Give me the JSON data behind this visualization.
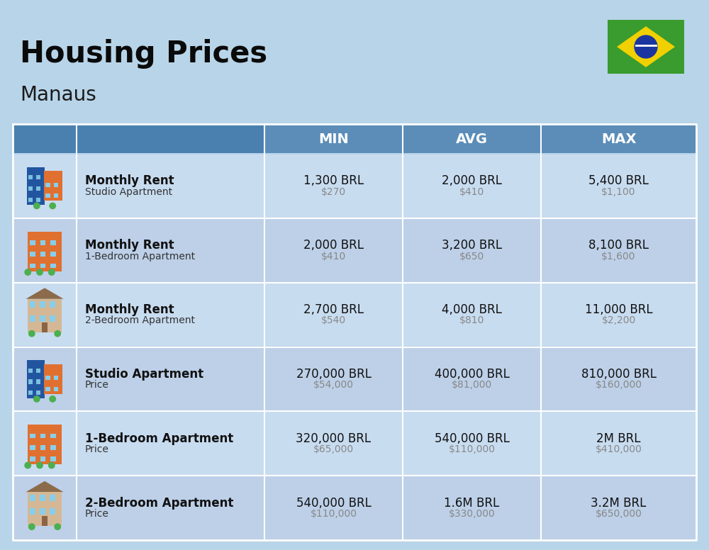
{
  "title": "Housing Prices",
  "subtitle": "Manaus",
  "bg_color": "#B8D4E8",
  "header_color": "#5B8DB8",
  "row_bg_even": "#C8DCF0",
  "row_bg_odd": "#BDD0E8",
  "col_headers": [
    "MIN",
    "AVG",
    "MAX"
  ],
  "rows": [
    {
      "label_bold": "Monthly Rent",
      "label_sub": "Studio Apartment",
      "icon_type": "blue_orange",
      "min_brl": "1,300 BRL",
      "min_usd": "$270",
      "avg_brl": "2,000 BRL",
      "avg_usd": "$410",
      "max_brl": "5,400 BRL",
      "max_usd": "$1,100"
    },
    {
      "label_bold": "Monthly Rent",
      "label_sub": "1-Bedroom Apartment",
      "icon_type": "orange",
      "min_brl": "2,000 BRL",
      "min_usd": "$410",
      "avg_brl": "3,200 BRL",
      "avg_usd": "$650",
      "max_brl": "8,100 BRL",
      "max_usd": "$1,600"
    },
    {
      "label_bold": "Monthly Rent",
      "label_sub": "2-Bedroom Apartment",
      "icon_type": "beige",
      "min_brl": "2,700 BRL",
      "min_usd": "$540",
      "avg_brl": "4,000 BRL",
      "avg_usd": "$810",
      "max_brl": "11,000 BRL",
      "max_usd": "$2,200"
    },
    {
      "label_bold": "Studio Apartment",
      "label_sub": "Price",
      "icon_type": "blue_orange",
      "min_brl": "270,000 BRL",
      "min_usd": "$54,000",
      "avg_brl": "400,000 BRL",
      "avg_usd": "$81,000",
      "max_brl": "810,000 BRL",
      "max_usd": "$160,000"
    },
    {
      "label_bold": "1-Bedroom Apartment",
      "label_sub": "Price",
      "icon_type": "orange",
      "min_brl": "320,000 BRL",
      "min_usd": "$65,000",
      "avg_brl": "540,000 BRL",
      "avg_usd": "$110,000",
      "max_brl": "2M BRL",
      "max_usd": "$410,000"
    },
    {
      "label_bold": "2-Bedroom Apartment",
      "label_sub": "Price",
      "icon_type": "beige",
      "min_brl": "540,000 BRL",
      "min_usd": "$110,000",
      "avg_brl": "1.6M BRL",
      "avg_usd": "$330,000",
      "max_brl": "3.2M BRL",
      "max_usd": "$650,000"
    }
  ]
}
